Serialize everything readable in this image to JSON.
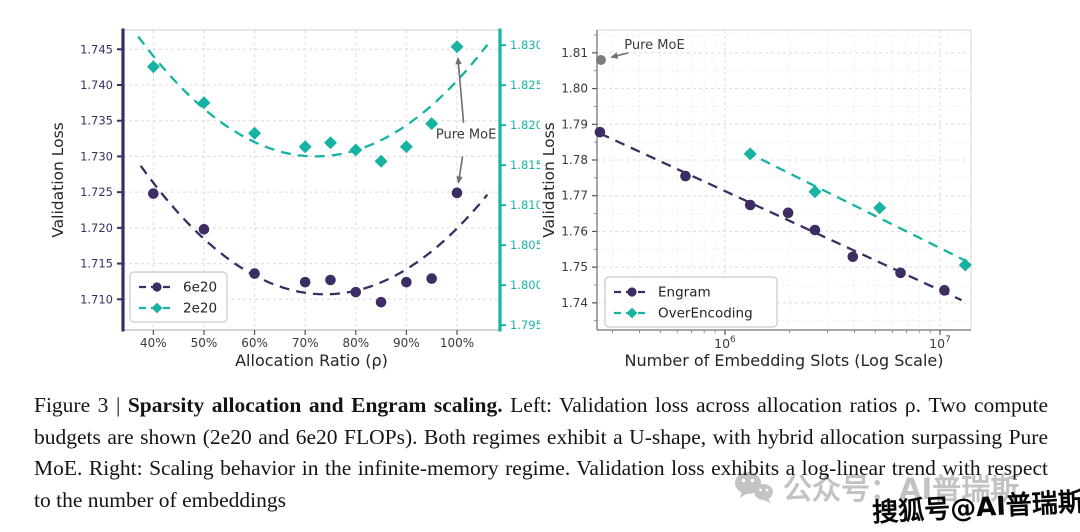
{
  "page": {
    "background": "#ffffff"
  },
  "caption": {
    "prefix": "Figure 3 | ",
    "bold_title": "Sparsity allocation and Engram scaling.",
    "body": " Left: Validation loss across allocation ratios ρ. Two compute budgets are shown (2e20 and 6e20 FLOPs). Both regimes exhibit a U-shape, with hybrid allocation surpassing Pure MoE. Right: Scaling behavior in the infinite-memory regime. Validation loss exhibits a log-linear trend with respect to the number of embeddings"
  },
  "watermarks": {
    "wechat_text": "公众号：AI普瑞斯",
    "wechat_color": "#c3c3c3",
    "sohu_text": "搜狐号@AI普瑞斯",
    "sohu_color": "#060606"
  },
  "colors": {
    "purple": "#3e2d63",
    "teal": "#17b3a2",
    "gray_point": "#7d7d7d",
    "arrow": "#6f6f6f",
    "grid": "#dcdcdc",
    "grid_minor": "#e9e9e9",
    "tick_text": "#3a3a3a",
    "axis_label": "#262626"
  },
  "chart_data": [
    {
      "type": "scatter",
      "panel": "left",
      "xlabel": "Allocation Ratio (ρ)",
      "ylabel": "Validation Loss",
      "grid": true,
      "legend_position": "lower left",
      "xlim": [
        34,
        108.5
      ],
      "xticks": {
        "values": [
          40,
          50,
          60,
          70,
          80,
          90,
          100
        ],
        "labels": [
          "40%",
          "50%",
          "60%",
          "70%",
          "80%",
          "90%",
          "100%"
        ]
      },
      "y_left": {
        "lim": [
          1.7057,
          1.7477
        ],
        "ticks": [
          1.71,
          1.715,
          1.72,
          1.725,
          1.73,
          1.735,
          1.74,
          1.745
        ],
        "labels": [
          "1.710",
          "1.715",
          "1.720",
          "1.725",
          "1.730",
          "1.735",
          "1.740",
          "1.745"
        ],
        "color": "#3e2d63"
      },
      "y_right": {
        "lim": [
          1.7944,
          1.8319
        ],
        "ticks": [
          1.795,
          1.8,
          1.805,
          1.81,
          1.815,
          1.82,
          1.825,
          1.83
        ],
        "labels": [
          "1.795",
          "1.800",
          "1.805",
          "1.810",
          "1.815",
          "1.820",
          "1.825",
          "1.830"
        ],
        "color": "#17b3a2"
      },
      "series": [
        {
          "name": "6e20",
          "axis": "left",
          "marker": "circle",
          "color": "#3e2d63",
          "fit": "quadratic",
          "fit_range": [
            37.5,
            106
          ],
          "x": [
            40,
            50,
            60,
            70,
            75,
            80,
            85,
            90,
            95,
            100
          ],
          "y": [
            1.7248,
            1.7198,
            1.7136,
            1.7124,
            1.7127,
            1.711,
            1.7096,
            1.7124,
            1.7129,
            1.7249
          ]
        },
        {
          "name": "2e20",
          "axis": "right",
          "marker": "diamond",
          "color": "#17b3a2",
          "fit": "quadratic",
          "fit_range": [
            37,
            106
          ],
          "x": [
            40,
            50,
            60,
            70,
            75,
            80,
            85,
            90,
            95,
            100
          ],
          "y": [
            1.8273,
            1.8228,
            1.819,
            1.8173,
            1.8178,
            1.8169,
            1.8155,
            1.8173,
            1.8202,
            1.8298
          ]
        }
      ],
      "annotation": {
        "text": "Pure MoE",
        "x": 101.8,
        "y": 1.7331,
        "axis": "left",
        "arrows": [
          {
            "from": {
              "x": 101.3,
              "y": 1.7347,
              "axis": "left"
            },
            "to": {
              "x": 100,
              "y": 1.8298,
              "axis": "right"
            },
            "gap": 10
          },
          {
            "from": {
              "x": 101.1,
              "y": 1.73,
              "axis": "left"
            },
            "to": {
              "x": 100,
              "y": 1.7249,
              "axis": "left"
            },
            "gap": 9
          }
        ]
      }
    },
    {
      "type": "scatter",
      "panel": "right",
      "xscale": "log",
      "xlabel": "Number of Embedding Slots (Log Scale)",
      "ylabel": "Validation Loss",
      "grid": true,
      "legend_position": "lower left",
      "xlim": [
        254000,
        13940000
      ],
      "xticks": {
        "values": [
          1000000,
          10000000
        ],
        "labels": [
          "10^6",
          "10^7"
        ]
      },
      "y": {
        "lim": [
          1.7324,
          1.8164
        ],
        "ticks": [
          1.74,
          1.75,
          1.76,
          1.77,
          1.78,
          1.79,
          1.8,
          1.81
        ],
        "labels": [
          "1.74",
          "1.75",
          "1.76",
          "1.77",
          "1.78",
          "1.79",
          "1.80",
          "1.81"
        ],
        "color": "#3a3a3a"
      },
      "series": [
        {
          "name": "Engram",
          "marker": "circle",
          "color": "#3e2d63",
          "fit": "loglinear",
          "fit_range": [
            262144,
            12600000
          ],
          "x": [
            262144,
            655360,
            1310720,
            1966080,
            2621440,
            3932160,
            6553600,
            10485760
          ],
          "y": [
            1.7878,
            1.7755,
            1.7674,
            1.7652,
            1.7604,
            1.7529,
            1.7484,
            1.7435
          ]
        },
        {
          "name": "OverEncoding",
          "marker": "diamond",
          "color": "#17b3a2",
          "fit": "loglinear",
          "fit_range": [
            1250000,
            13107200
          ],
          "x": [
            1310720,
            2621440,
            5242880,
            13107200
          ],
          "y": [
            1.7817,
            1.7711,
            1.7666,
            1.7506
          ]
        }
      ],
      "extra_points": [
        {
          "name": "Pure MoE",
          "color": "#7d7d7d",
          "x": 265000,
          "y": 1.808
        }
      ],
      "annotation": {
        "text": "Pure MoE",
        "x": 470000,
        "y": 1.8122,
        "arrows": [
          {
            "from": {
              "x": 355000,
              "y": 1.81
            },
            "to": {
              "x": 272000,
              "y": 1.8082
            },
            "gap": 7
          }
        ]
      }
    }
  ]
}
